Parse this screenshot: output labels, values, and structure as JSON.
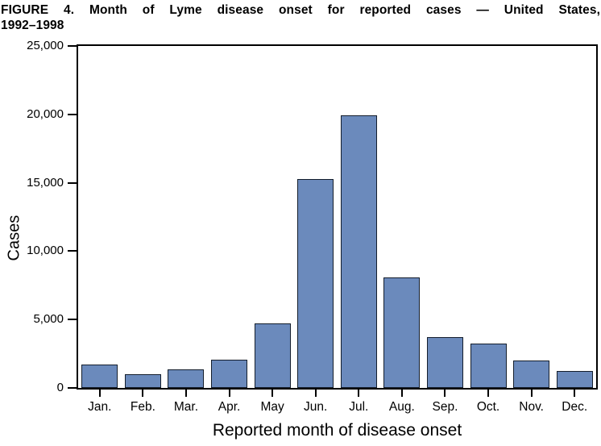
{
  "figure": {
    "title_line1": "FIGURE 4. Month of Lyme disease onset for reported cases — United States,",
    "title_line2": "1992–1998"
  },
  "chart_data": {
    "type": "bar",
    "title": "FIGURE 4. Month of Lyme disease onset for reported cases — United States, 1992–1998",
    "categories": [
      "Jan.",
      "Feb.",
      "Mar.",
      "Apr.",
      "May",
      "Jun.",
      "Jul.",
      "Aug.",
      "Sep.",
      "Oct.",
      "Nov.",
      "Dec."
    ],
    "values": [
      1700,
      1000,
      1350,
      2050,
      4700,
      15250,
      19900,
      8100,
      3700,
      3250,
      2000,
      1250
    ],
    "xlabel": "Reported month of disease onset",
    "ylabel": "Cases",
    "ylim": [
      0,
      25000
    ],
    "y_ticks": [
      0,
      5000,
      10000,
      15000,
      20000,
      25000
    ],
    "y_tick_labels": [
      "0",
      "5,000",
      "10,000",
      "15,000",
      "20,000",
      "25,000"
    ],
    "grid": false,
    "legend_position": "none",
    "bar_fill": "#6b8abc",
    "bar_border": "#141e2c",
    "axis_color": "#000000",
    "background": "#ffffff"
  }
}
